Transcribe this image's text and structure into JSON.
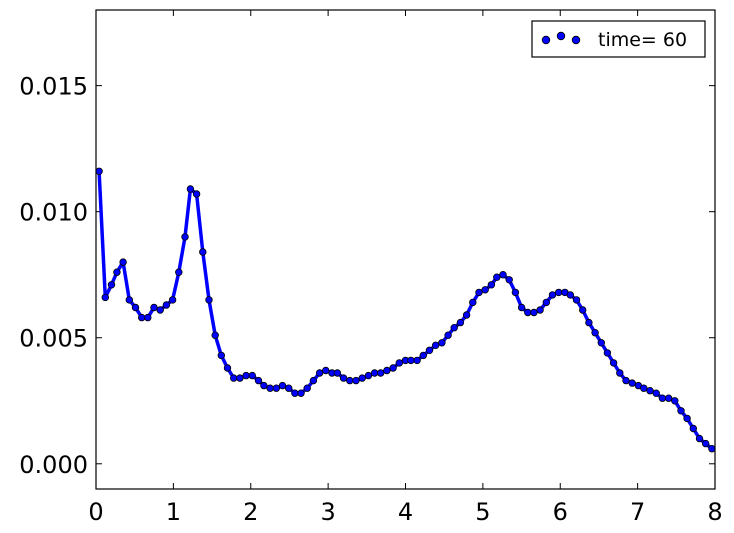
{
  "chart_data": {
    "type": "line",
    "title": "",
    "xlabel": "",
    "ylabel": "",
    "xlim": [
      0,
      8
    ],
    "ylim": [
      -0.001,
      0.018
    ],
    "xticks": [
      0,
      1,
      2,
      3,
      4,
      5,
      6,
      7,
      8
    ],
    "xtick_labels": [
      "0",
      "1",
      "2",
      "3",
      "4",
      "5",
      "6",
      "7",
      "8"
    ],
    "yticks": [
      0.0,
      0.005,
      0.01,
      0.015
    ],
    "ytick_labels": [
      "0.000",
      "0.005",
      "0.010",
      "0.015"
    ],
    "grid": false,
    "legend": {
      "location": "top-right",
      "entries": [
        "time= 60"
      ]
    },
    "series": [
      {
        "name": "time= 60",
        "color": "#0000ff",
        "marker": "circle",
        "x": [
          0.04,
          0.12,
          0.2,
          0.27,
          0.35,
          0.43,
          0.51,
          0.59,
          0.67,
          0.75,
          0.83,
          0.91,
          0.99,
          1.07,
          1.15,
          1.22,
          1.3,
          1.38,
          1.46,
          1.54,
          1.62,
          1.7,
          1.78,
          1.86,
          1.94,
          2.02,
          2.1,
          2.17,
          2.25,
          2.33,
          2.41,
          2.49,
          2.57,
          2.65,
          2.73,
          2.81,
          2.89,
          2.97,
          3.05,
          3.12,
          3.2,
          3.28,
          3.36,
          3.44,
          3.52,
          3.6,
          3.68,
          3.76,
          3.84,
          3.92,
          4.0,
          4.07,
          4.15,
          4.23,
          4.31,
          4.39,
          4.47,
          4.55,
          4.63,
          4.71,
          4.79,
          4.87,
          4.95,
          5.03,
          5.11,
          5.18,
          5.26,
          5.34,
          5.42,
          5.5,
          5.58,
          5.66,
          5.74,
          5.82,
          5.9,
          5.98,
          6.06,
          6.13,
          6.21,
          6.29,
          6.37,
          6.45,
          6.53,
          6.61,
          6.69,
          6.77,
          6.85,
          6.93,
          7.01,
          7.08,
          7.16,
          7.24,
          7.32,
          7.4,
          7.48,
          7.56,
          7.64,
          7.72,
          7.8,
          7.88,
          7.96
        ],
        "y": [
          0.0116,
          0.0066,
          0.0071,
          0.0076,
          0.008,
          0.0065,
          0.0062,
          0.0058,
          0.0058,
          0.0062,
          0.0061,
          0.0063,
          0.0065,
          0.0076,
          0.009,
          0.0109,
          0.0107,
          0.0084,
          0.0065,
          0.0051,
          0.0043,
          0.0038,
          0.0034,
          0.0034,
          0.0035,
          0.0035,
          0.0033,
          0.0031,
          0.003,
          0.003,
          0.0031,
          0.003,
          0.0028,
          0.0028,
          0.003,
          0.0033,
          0.0036,
          0.0037,
          0.0036,
          0.0036,
          0.0034,
          0.0033,
          0.0033,
          0.0034,
          0.0035,
          0.0036,
          0.0036,
          0.0037,
          0.0038,
          0.004,
          0.0041,
          0.0041,
          0.0041,
          0.0043,
          0.0045,
          0.0047,
          0.0048,
          0.0051,
          0.0054,
          0.0056,
          0.0059,
          0.0064,
          0.0068,
          0.0069,
          0.0071,
          0.0074,
          0.0075,
          0.0073,
          0.0068,
          0.0062,
          0.006,
          0.006,
          0.0061,
          0.0064,
          0.0067,
          0.0068,
          0.0068,
          0.0067,
          0.0065,
          0.0061,
          0.0056,
          0.0052,
          0.0048,
          0.0044,
          0.004,
          0.0036,
          0.0033,
          0.0032,
          0.0031,
          0.003,
          0.0029,
          0.0028,
          0.0026,
          0.0026,
          0.0025,
          0.0021,
          0.0018,
          0.0014,
          0.001,
          0.0008,
          0.0006
        ]
      }
    ]
  }
}
